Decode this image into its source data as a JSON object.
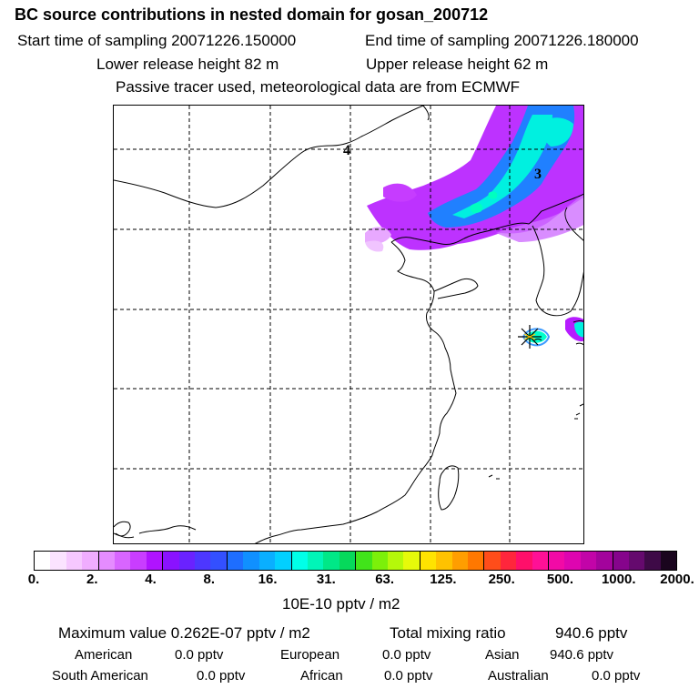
{
  "header": {
    "title": "BC  source contributions in nested domain for gosan_200712",
    "start_sampling": "Start time of sampling 20071226.150000",
    "end_sampling": "End time of sampling 20071226.180000",
    "lower_release": "Lower release height   82 m",
    "upper_release": "Upper release height   62 m",
    "tracer_note": "Passive tracer used, meteorological data are from ECMWF"
  },
  "map": {
    "labels": [
      "4",
      "3"
    ],
    "receptor_symbol": "star-receptor-marker"
  },
  "legend": {
    "colors": [
      "#ffffff",
      "#fbe3ff",
      "#f6c8ff",
      "#f0adff",
      "#e58cff",
      "#d865ff",
      "#c93dff",
      "#b013ff",
      "#8a12ff",
      "#6a22ff",
      "#4d37ff",
      "#3350ff",
      "#1e6eff",
      "#1090ff",
      "#0aafff",
      "#02d0ff",
      "#00ffe8",
      "#00f5b8",
      "#00e887",
      "#06d95b",
      "#41e41a",
      "#7cf00a",
      "#b5f80a",
      "#e6fa0a",
      "#ffe300",
      "#ffc200",
      "#ff9e00",
      "#ff7800",
      "#ff4d1a",
      "#ff263c",
      "#ff0f6a",
      "#ff1096",
      "#f20aa6",
      "#de05b0",
      "#c204a8",
      "#a3039c",
      "#86048c",
      "#650a6e",
      "#3e0a47",
      "#1a051e"
    ],
    "ticks": [
      "0.",
      "2.",
      "4.",
      "8.",
      "16.",
      "31.",
      "63.",
      "125.",
      "250.",
      "500.",
      "1000.",
      "2000."
    ],
    "unit": "10E-10 pptv / m2"
  },
  "summary": {
    "max_label": "Maximum value  0.262E-07 pptv / m2",
    "total_label": "Total mixing ratio",
    "total_value": "940.6 pptv",
    "regions": [
      {
        "name": "American",
        "value": "0.0 pptv"
      },
      {
        "name": "European",
        "value": "0.0 pptv"
      },
      {
        "name": "Asian",
        "value": "940.6 pptv"
      },
      {
        "name": "South American",
        "value": "0.0 pptv"
      },
      {
        "name": "African",
        "value": "0.0 pptv"
      },
      {
        "name": "Australian",
        "value": "0.0 pptv"
      }
    ]
  }
}
